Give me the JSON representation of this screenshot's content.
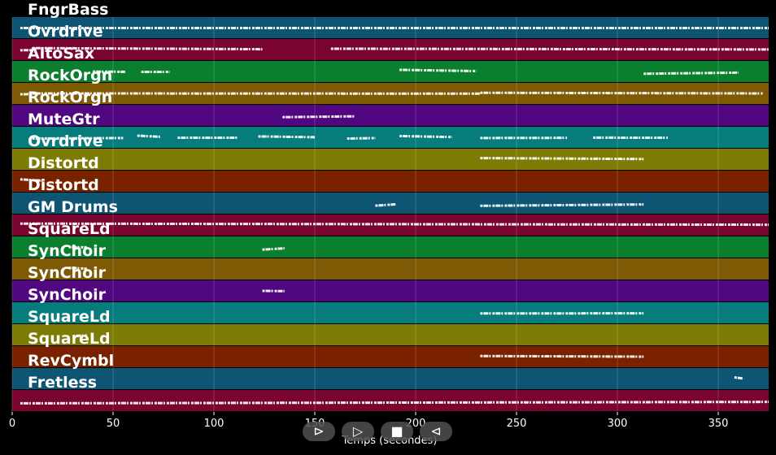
{
  "chart_data": {
    "type": "piano-roll",
    "xlabel": "Temps (secondes)",
    "xlim": [
      0,
      375
    ],
    "xticks": [
      0,
      50,
      100,
      150,
      200,
      250,
      300,
      350
    ],
    "tracks": [
      {
        "name": "FngrBass",
        "color": "#0e5473",
        "segments": [
          [
            4,
            375
          ]
        ]
      },
      {
        "name": "Ovrdrive",
        "color": "#7a0430",
        "segments": [
          [
            4,
            10
          ],
          [
            10,
            124
          ],
          [
            158,
            375
          ]
        ]
      },
      {
        "name": "AltoSax",
        "color": "#0a7f2e",
        "segments": [
          [
            40,
            56
          ],
          [
            64,
            78
          ],
          [
            192,
            230
          ],
          [
            313,
            360
          ]
        ]
      },
      {
        "name": "RockOrgn",
        "color": "#7f5a05",
        "segments": [
          [
            4,
            10
          ],
          [
            10,
            232
          ],
          [
            232,
            372
          ]
        ]
      },
      {
        "name": "RockOrgn",
        "color": "#51077f",
        "segments": [
          [
            134,
            170
          ]
        ]
      },
      {
        "name": "MuteGtr",
        "color": "#077c7c",
        "segments": [
          [
            10,
            55
          ],
          [
            62,
            74
          ],
          [
            82,
            112
          ],
          [
            122,
            150
          ],
          [
            166,
            180
          ],
          [
            192,
            218
          ],
          [
            232,
            275
          ],
          [
            288,
            325
          ]
        ]
      },
      {
        "name": "Ovrdrive",
        "color": "#7c7c05",
        "segments": [
          [
            232,
            313
          ]
        ]
      },
      {
        "name": "Distortd",
        "color": "#7a2200",
        "segments": [
          [
            4,
            15
          ]
        ]
      },
      {
        "name": "Distortd",
        "color": "#0e5473",
        "segments": [
          [
            180,
            190
          ],
          [
            232,
            313
          ]
        ]
      },
      {
        "name": "GM Drums",
        "color": "#7a0430",
        "segments": [
          [
            4,
            375
          ]
        ]
      },
      {
        "name": "SquareLd",
        "color": "#0a7f2e",
        "segments": [
          [
            28,
            37
          ],
          [
            124,
            135
          ]
        ]
      },
      {
        "name": "SynChoir",
        "color": "#7f5a05",
        "segments": [
          [
            28,
            37
          ]
        ]
      },
      {
        "name": "SynChoir",
        "color": "#51077f",
        "segments": [
          [
            124,
            135
          ]
        ]
      },
      {
        "name": "SynChoir",
        "color": "#077c7c",
        "segments": [
          [
            232,
            313
          ]
        ]
      },
      {
        "name": "SquareLd",
        "color": "#7c7c05",
        "segments": [
          [
            30,
            37
          ]
        ]
      },
      {
        "name": "SquareLd",
        "color": "#7a2200",
        "segments": [
          [
            232,
            313
          ]
        ]
      },
      {
        "name": "RevCymbl",
        "color": "#0e5473",
        "segments": [
          [
            358,
            362
          ]
        ]
      },
      {
        "name": "Fretless",
        "color": "#7a0430",
        "segments": [
          [
            4,
            375
          ]
        ]
      }
    ]
  },
  "controls": {
    "step_back": "⊳",
    "play": "▷",
    "stop": "■",
    "step_forward": "⊲"
  }
}
